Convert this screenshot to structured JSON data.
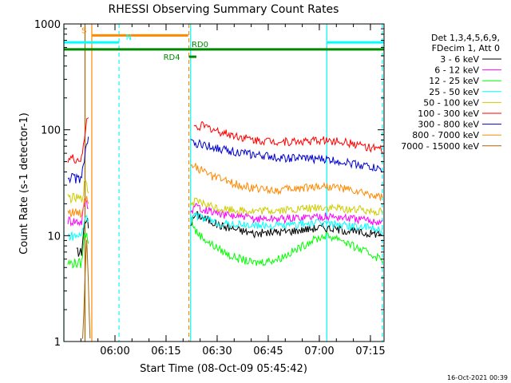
{
  "chart_data": {
    "type": "line",
    "title": "RHESSI Observing Summary Count Rates",
    "xlabel": "Start Time (08-Oct-09 05:45:42)",
    "ylabel": "Count Rate (s-1 detector-1)",
    "yscale": "log",
    "ylim": [
      1,
      1000
    ],
    "xlim_minutes": [
      -0.7,
      93.3
    ],
    "y_ticks": [
      {
        "label": "1",
        "value": 1
      },
      {
        "label": "10",
        "value": 10
      },
      {
        "label": "100",
        "value": 100
      },
      {
        "label": "1000",
        "value": 1000
      }
    ],
    "x_ticks": [
      {
        "label": "06:00",
        "minute": 14.3
      },
      {
        "label": "06:15",
        "minute": 29.3
      },
      {
        "label": "06:30",
        "minute": 44.3
      },
      {
        "label": "06:45",
        "minute": 59.3
      },
      {
        "label": "07:00",
        "minute": 74.3
      },
      {
        "label": "07:15",
        "minute": 89.3
      }
    ],
    "legend_header": [
      "Det 1,3,4,5,6,9,",
      "FDecim 1, Att 0"
    ],
    "footer_date": "16-Oct-2021 00:39",
    "series": [
      {
        "name": "3 - 6 keV",
        "color": "#000000",
        "seg1": [
          [
            3,
            7
          ],
          [
            4.5,
            7
          ],
          [
            5.3,
            13
          ],
          [
            6,
            15
          ],
          [
            6.5,
            12
          ]
        ],
        "seg2": [
          [
            36.5,
            13
          ],
          [
            38,
            16
          ],
          [
            45,
            12.5
          ],
          [
            55,
            10.5
          ],
          [
            65,
            11
          ],
          [
            70,
            11.5
          ],
          [
            75,
            12
          ],
          [
            80,
            11.5
          ],
          [
            88,
            10.5
          ],
          [
            92.8,
            10.5
          ]
        ]
      },
      {
        "name": "6 - 12 keV",
        "color": "#ff00ff",
        "seg1": [
          [
            0.5,
            14
          ],
          [
            4.5,
            13.5
          ],
          [
            5.3,
            20
          ],
          [
            6,
            22
          ],
          [
            6.5,
            18
          ]
        ],
        "seg2": [
          [
            36.5,
            17
          ],
          [
            38,
            19
          ],
          [
            45,
            16
          ],
          [
            55,
            14.5
          ],
          [
            65,
            14.5
          ],
          [
            70,
            15
          ],
          [
            75,
            15.3
          ],
          [
            80,
            15
          ],
          [
            88,
            14
          ],
          [
            92.8,
            13.5
          ]
        ]
      },
      {
        "name": "12 - 25 keV",
        "color": "#00ff00",
        "seg1": [
          [
            0.5,
            5.5
          ],
          [
            4.5,
            5.5
          ],
          [
            5.3,
            10
          ],
          [
            6,
            11
          ],
          [
            6.5,
            9
          ]
        ],
        "seg2": [
          [
            36.5,
            15
          ],
          [
            38,
            11
          ],
          [
            42,
            8.5
          ],
          [
            48,
            6.5
          ],
          [
            55,
            5.5
          ],
          [
            62,
            6
          ],
          [
            68,
            7.5
          ],
          [
            72,
            9
          ],
          [
            76,
            10
          ],
          [
            80,
            9.5
          ],
          [
            84,
            8
          ],
          [
            88,
            7
          ],
          [
            92.8,
            6
          ]
        ]
      },
      {
        "name": "25 - 50 keV",
        "color": "#00ffff",
        "seg1": [
          [
            0.5,
            10
          ],
          [
            4.5,
            10
          ],
          [
            5.3,
            14
          ],
          [
            6,
            16
          ],
          [
            6.5,
            13
          ]
        ],
        "seg2": [
          [
            36.5,
            15
          ],
          [
            38,
            15.5
          ],
          [
            45,
            13
          ],
          [
            55,
            12.5
          ],
          [
            65,
            12.5
          ],
          [
            70,
            13
          ],
          [
            75,
            13.2
          ],
          [
            80,
            12.8
          ],
          [
            88,
            12
          ],
          [
            92.8,
            11.5
          ]
        ]
      },
      {
        "name": "50 - 100 keV",
        "color": "#cccc00",
        "seg1": [
          [
            0.5,
            23
          ],
          [
            4.5,
            22
          ],
          [
            5.3,
            30
          ],
          [
            6,
            32
          ],
          [
            6.5,
            25
          ]
        ],
        "seg2": [
          [
            36.5,
            20
          ],
          [
            38,
            21
          ],
          [
            45,
            18
          ],
          [
            55,
            17
          ],
          [
            65,
            17.5
          ],
          [
            70,
            18
          ],
          [
            75,
            18.5
          ],
          [
            80,
            18
          ],
          [
            88,
            17.5
          ],
          [
            92.8,
            17
          ]
        ]
      },
      {
        "name": "100 - 300 keV",
        "color": "#ff0000",
        "seg1": [
          [
            0.5,
            54
          ],
          [
            4.5,
            52
          ],
          [
            5.3,
            80
          ],
          [
            6,
            130
          ],
          [
            6.5,
            140
          ]
        ],
        "seg2": [
          [
            37.5,
            105
          ],
          [
            40,
            110
          ],
          [
            45,
            96
          ],
          [
            55,
            80
          ],
          [
            65,
            77
          ],
          [
            70,
            78
          ],
          [
            75,
            80
          ],
          [
            80,
            78
          ],
          [
            88,
            70
          ],
          [
            92.8,
            64
          ]
        ]
      },
      {
        "name": "300 - 800 keV",
        "color": "#0000cc",
        "seg1": [
          [
            0.5,
            36
          ],
          [
            4.5,
            34
          ],
          [
            5.3,
            55
          ],
          [
            6,
            75
          ],
          [
            6.5,
            80
          ]
        ],
        "seg2": [
          [
            36.5,
            75
          ],
          [
            40,
            73
          ],
          [
            45,
            66
          ],
          [
            55,
            58
          ],
          [
            65,
            54
          ],
          [
            70,
            54
          ],
          [
            75,
            53
          ],
          [
            80,
            51
          ],
          [
            88,
            46
          ],
          [
            92.8,
            42
          ]
        ]
      },
      {
        "name": "800 - 7000 keV",
        "color": "#ff8800",
        "seg1": [
          [
            0.5,
            17
          ],
          [
            4.5,
            16
          ],
          [
            5.3,
            22
          ],
          [
            6,
            24
          ],
          [
            6.5,
            20
          ]
        ],
        "seg2": [
          [
            36.5,
            50
          ],
          [
            38,
            45
          ],
          [
            42,
            37
          ],
          [
            48,
            32
          ],
          [
            55,
            28
          ],
          [
            62,
            27
          ],
          [
            68,
            28
          ],
          [
            72,
            29
          ],
          [
            76,
            29.5
          ],
          [
            80,
            28.5
          ],
          [
            85,
            26
          ],
          [
            92.8,
            23
          ]
        ]
      },
      {
        "name": "7000 - 15000 keV",
        "color": "#aa6600",
        "seg1": [
          [
            4.8,
            1
          ],
          [
            5.5,
            4
          ],
          [
            6,
            9
          ],
          [
            6.5,
            3.5
          ],
          [
            7,
            1
          ]
        ],
        "seg2": []
      }
    ],
    "flags": [
      {
        "label": "S",
        "color": "#ff8800",
        "y_value": 780,
        "x_start": 7.5,
        "x_end": 35.8,
        "label_at": 4.5
      },
      {
        "label": "N",
        "color": "#00ffff",
        "y_value": 670,
        "x_start": -0.7,
        "x_end": 15.5,
        "label_at": 17.5,
        "x2_start": 76.5,
        "x2_end": 93.3
      },
      {
        "label": "RD0",
        "color": "#008800",
        "y_value": 575,
        "x_start": -0.7,
        "x_end": 93.3,
        "label_at": 36.8
      },
      {
        "label": "RD4",
        "color": "#008800",
        "y_value": 490,
        "x_start": 36,
        "x_end": 38.2,
        "label_at": 28.5
      }
    ],
    "vlines": [
      {
        "minute": -0.7,
        "color": "#00ffff",
        "dashed": false
      },
      {
        "minute": 5.5,
        "color": "#aa6600",
        "dashed": false
      },
      {
        "minute": 7.5,
        "color": "#ff8800",
        "dashed": false
      },
      {
        "minute": 15.5,
        "color": "#00ffff",
        "dashed": true
      },
      {
        "minute": 36.0,
        "color": "#ff8800",
        "dashed": true
      },
      {
        "minute": 36.5,
        "color": "#00ffff",
        "dashed": false
      },
      {
        "minute": 76.5,
        "color": "#00ffff",
        "dashed": false
      },
      {
        "minute": 92.8,
        "color": "#00ffff",
        "dashed": true
      }
    ]
  }
}
